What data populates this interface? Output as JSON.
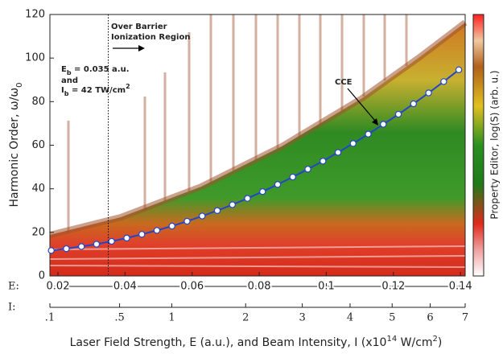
{
  "chart_data": {
    "type": "scatter",
    "y_label": "Harmonic Order, ω/ω",
    "y_label_sub": "0",
    "colorbar_label": "Property Editor, log(S) (arb. u.)",
    "x_label_parts": [
      "Laser Field Strength, E (a.u.), and Beam Intensity, I (x10",
      "14",
      " W/cm",
      "2",
      ")"
    ],
    "x_axis_label": "E:",
    "x2_axis_label": "I:",
    "xlim": [
      0.0176,
      0.1414
    ],
    "xticks": [
      0.02,
      0.04,
      0.06,
      0.08,
      0.1,
      0.12,
      0.14
    ],
    "ylim": [
      0,
      120
    ],
    "yticks": [
      0,
      20,
      40,
      60,
      80,
      100,
      120
    ],
    "x2lim": [
      0.1,
      7
    ],
    "x2scale": "sqrt",
    "x2ticks": [
      {
        "value": 0.1,
        "label": ".1"
      },
      {
        "value": 0.5,
        "label": ".5"
      },
      1,
      2,
      3,
      4,
      5,
      6,
      7
    ],
    "series": [
      {
        "name": "CCE",
        "color": "#2346c8",
        "x": [
          0.018,
          0.0225,
          0.027,
          0.0315,
          0.036,
          0.0405,
          0.045,
          0.0495,
          0.054,
          0.0585,
          0.063,
          0.0675,
          0.072,
          0.0765,
          0.081,
          0.0855,
          0.09,
          0.0945,
          0.099,
          0.1035,
          0.108,
          0.1125,
          0.117,
          0.1215,
          0.126,
          0.1305,
          0.135,
          0.1395
        ],
        "values": [
          11.7,
          12.5,
          13.5,
          14.6,
          15.9,
          17.4,
          19.1,
          20.9,
          22.9,
          25.1,
          27.5,
          30.0,
          32.7,
          35.6,
          38.7,
          42.0,
          45.4,
          49.0,
          52.7,
          56.7,
          60.8,
          65.1,
          69.6,
          74.2,
          79.0,
          84.0,
          89.2,
          94.6
        ]
      }
    ],
    "vline_x": 0.035,
    "annotations": {
      "region": [
        "Over Barrier",
        "Ionization Region"
      ],
      "eb": [
        "E",
        "b",
        " = 0.035 a.u."
      ],
      "and": "and",
      "ib": [
        "I",
        "b",
        " = 42 TW/cm",
        "2"
      ]
    }
  }
}
